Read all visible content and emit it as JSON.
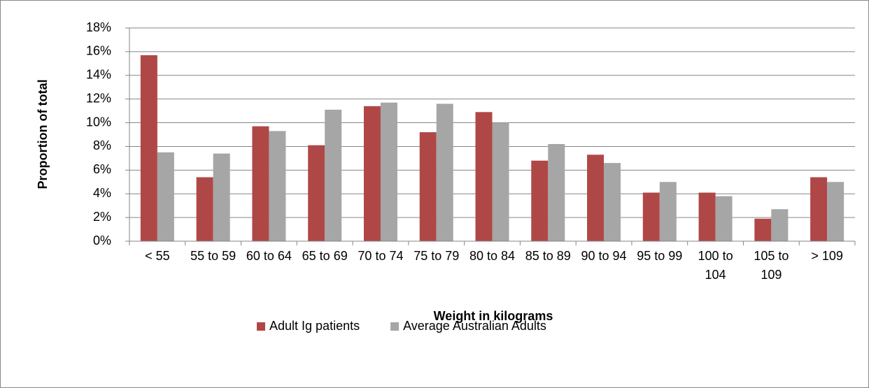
{
  "chart_data": {
    "type": "bar",
    "x_label": "Weight in kilograms",
    "y_label": "Proportion of total",
    "categories": [
      "< 55",
      "55 to 59",
      "60 to 64",
      "65 to 69",
      "70 to 74",
      "75 to 79",
      "80 to 84",
      "85 to 89",
      "90 to 94",
      "95 to 99",
      "100 to 104",
      "105 to 109",
      "> 109"
    ],
    "series": [
      {
        "name": "Adult Ig patients",
        "color": "#b04747",
        "values": [
          15.7,
          5.4,
          9.7,
          8.1,
          11.4,
          9.2,
          10.9,
          6.8,
          7.3,
          4.1,
          4.1,
          1.9,
          5.4
        ]
      },
      {
        "name": "Average Australian Adults",
        "color": "#a6a6a6",
        "values": [
          7.5,
          7.4,
          9.3,
          11.1,
          11.7,
          11.6,
          10.0,
          8.2,
          6.6,
          5.0,
          3.8,
          2.7,
          5.0
        ]
      }
    ],
    "ylim": [
      0,
      18
    ],
    "yticks": [
      {
        "value": 0,
        "label": "0%"
      },
      {
        "value": 2,
        "label": "2%"
      },
      {
        "value": 4,
        "label": "4%"
      },
      {
        "value": 6,
        "label": "6%"
      },
      {
        "value": 8,
        "label": "8%"
      },
      {
        "value": 10,
        "label": "10%"
      },
      {
        "value": 12,
        "label": "12%"
      },
      {
        "value": 14,
        "label": "14%"
      },
      {
        "value": 16,
        "label": "16%"
      },
      {
        "value": 18,
        "label": "18%"
      }
    ],
    "grid": true,
    "legend": "bottom"
  }
}
